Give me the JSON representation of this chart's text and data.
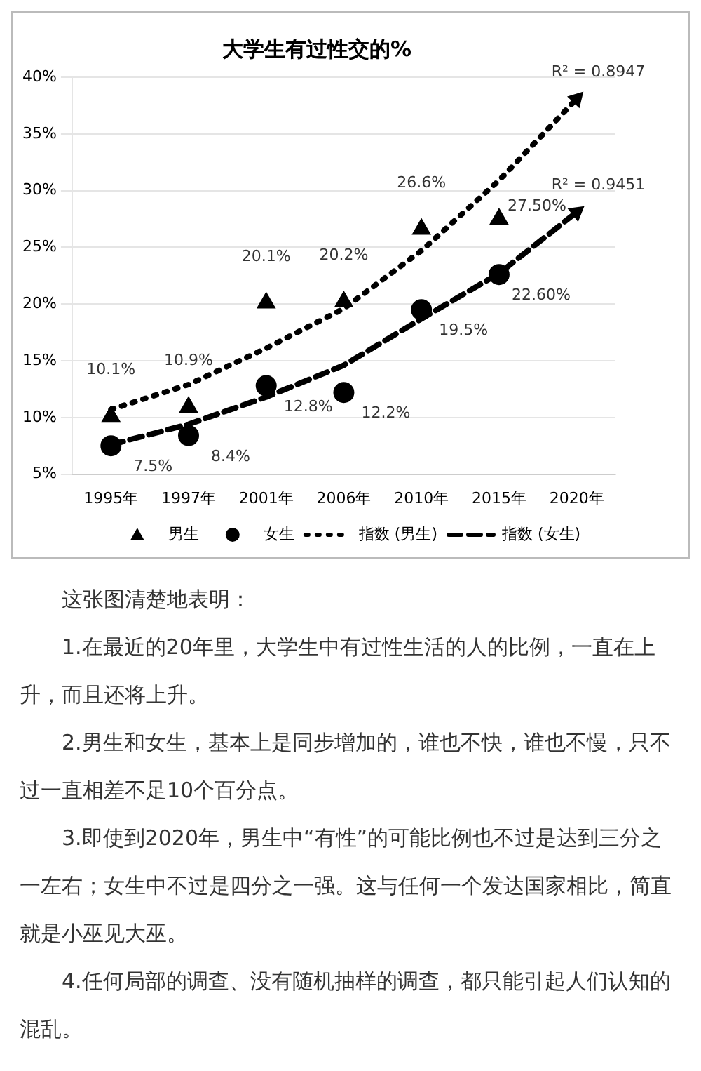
{
  "chart_data": {
    "type": "scatter",
    "title": "大学生有过性交的%",
    "categories": [
      "1995年",
      "1997年",
      "2001年",
      "2006年",
      "2010年",
      "2015年",
      "2020年"
    ],
    "series": [
      {
        "name": "男生",
        "type": "scatter",
        "color": "#000000",
        "marker": "triangle",
        "values": [
          10.1,
          10.9,
          20.1,
          20.2,
          26.6,
          27.5,
          null
        ],
        "value_labels": [
          "10.1%",
          "10.9%",
          "20.1%",
          "20.2%",
          "26.6%",
          "27.50%",
          null
        ]
      },
      {
        "name": "女生",
        "type": "scatter",
        "color": "#000000",
        "marker": "circle",
        "values": [
          7.5,
          8.4,
          12.8,
          12.2,
          19.5,
          22.6,
          null
        ],
        "value_labels": [
          "7.5%",
          "8.4%",
          "12.8%",
          "12.2%",
          "19.5%",
          "22.60%",
          null
        ]
      },
      {
        "name": "指数 (男生)",
        "type": "line",
        "color": "#000000",
        "marker": "none",
        "line_style": "dotted",
        "values": [
          10.7,
          12.9,
          16.1,
          19.6,
          24.7,
          30.9,
          38.1
        ]
      },
      {
        "name": "指数 (女生)",
        "type": "line",
        "color": "#000000",
        "marker": "none",
        "line_style": "dashed",
        "values": [
          7.6,
          9.4,
          11.8,
          14.6,
          18.7,
          22.7,
          28.1
        ]
      }
    ],
    "ylim": [
      5,
      40
    ],
    "yticks": [
      {
        "value": 5,
        "label": "5%"
      },
      {
        "value": 10,
        "label": "10%"
      },
      {
        "value": 15,
        "label": "15%"
      },
      {
        "value": 20,
        "label": "20%"
      },
      {
        "value": 25,
        "label": "25%"
      },
      {
        "value": 30,
        "label": "30%"
      },
      {
        "value": 35,
        "label": "35%"
      },
      {
        "value": 40,
        "label": "40%"
      }
    ],
    "grid": "y",
    "legend": "bottom",
    "annotations": [
      {
        "text": "R² = 0.8947",
        "x": "2020年",
        "y": 38.1
      },
      {
        "text": "R² = 0.9451",
        "x": "2020年",
        "y": 28.1
      },
      "这张图清楚地表明：",
      "1.在最近的20年里，大学生中有过性生活的人的比例，一直在上升，而且还将上升。",
      "2.男生和女生，基本上是同步增加的，谁也不快，谁也不慢，只不过一直相差不足10个百分点。",
      "3.即使到2020年，男生中“有性”的可能比例也不过是达到三分之一左右；女生中不过是四分之一强。这与任何一个发达国家相比，简直就是小巫见大巫。",
      "4.任何局部的调查、没有随机抽样的调查，都只能引起人们认知的混乱。"
    ]
  }
}
